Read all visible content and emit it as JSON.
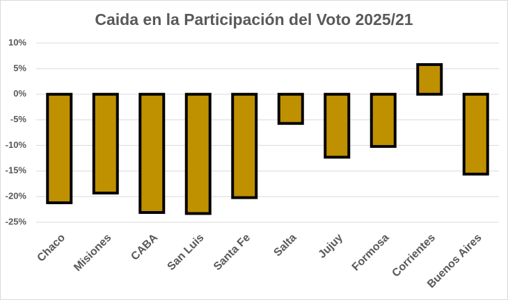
{
  "chart_data": {
    "type": "bar",
    "title": "Caida en la Participación del Voto 2025/21",
    "categories": [
      "Chaco",
      "Misiones",
      "CABA",
      "San Luis",
      "Santa Fe",
      "Salta",
      "Jujuy",
      "Formosa",
      "Corrientes",
      "Buenos Aires"
    ],
    "values": [
      -21.2,
      -19.3,
      -23.1,
      -23.3,
      -20.2,
      -5.7,
      -12.3,
      -10.2,
      5.8,
      -15.6
    ],
    "color": "#bf9000",
    "ylim": [
      -25,
      10
    ],
    "yticks": [
      {
        "value": -25,
        "label": "-25%"
      },
      {
        "value": -20,
        "label": "-20%"
      },
      {
        "value": -15,
        "label": "-15%"
      },
      {
        "value": -10,
        "label": "-10%"
      },
      {
        "value": -5,
        "label": "-5%"
      },
      {
        "value": 0,
        "label": "0%"
      },
      {
        "value": 5,
        "label": "5%"
      },
      {
        "value": 10,
        "label": "10%"
      }
    ],
    "grid": true
  }
}
